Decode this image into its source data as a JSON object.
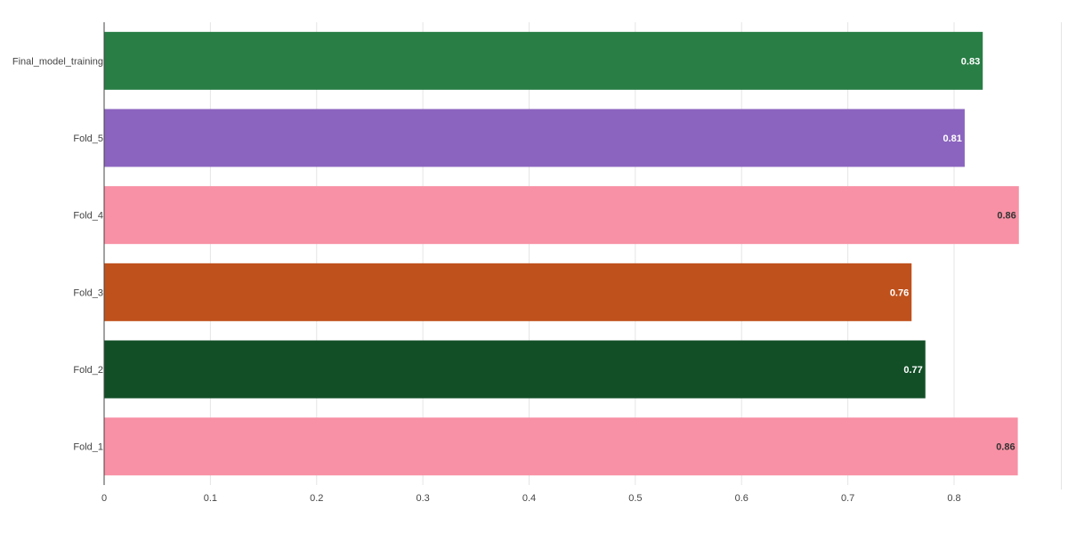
{
  "chart_data": {
    "type": "bar",
    "orientation": "horizontal",
    "categories": [
      "Fold_1",
      "Fold_2",
      "Fold_3",
      "Fold_4",
      "Fold_5",
      "Final_model_training"
    ],
    "values": [
      0.86,
      0.773,
      0.76,
      0.861,
      0.81,
      0.827
    ],
    "value_labels": [
      "0.86",
      "0.77",
      "0.76",
      "0.86",
      "0.81",
      "0.83"
    ],
    "colors": [
      "#f891a5",
      "#124f27",
      "#bf511c",
      "#f891a5",
      "#8b64bf",
      "#287e45"
    ],
    "label_colors": [
      "#333333",
      "#ffffff",
      "#ffffff",
      "#333333",
      "#ffffff",
      "#ffffff"
    ],
    "x_ticks": [
      "0",
      "0.1",
      "0.2",
      "0.3",
      "0.4",
      "0.5",
      "0.6",
      "0.7",
      "0.8"
    ],
    "xlim": [
      0,
      0.862
    ],
    "grid": true,
    "legend": false
  }
}
